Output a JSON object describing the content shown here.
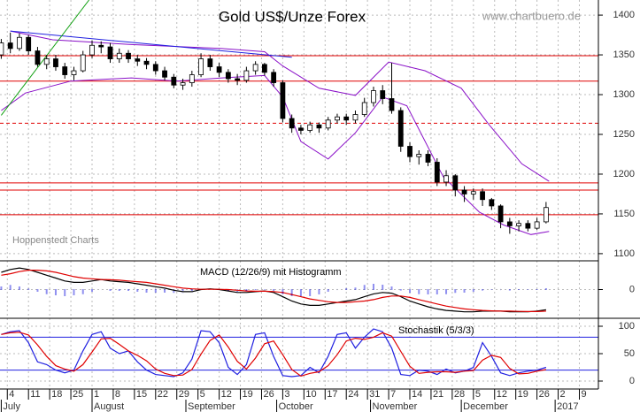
{
  "chart_data": [
    {
      "type": "candlestick",
      "title": "Gold US$/Unze Forex",
      "source": "www.chartbuero.de",
      "annotation": "Hoppenstedt Charts",
      "x": [
        1,
        4,
        7,
        10,
        13,
        16,
        19,
        22,
        25,
        28,
        31,
        34,
        37,
        40,
        43,
        46,
        49,
        52,
        55,
        58,
        61,
        64,
        67,
        70,
        73,
        76,
        79,
        82,
        85,
        88,
        91,
        94,
        97,
        100,
        103,
        106,
        109,
        112,
        115,
        118,
        121,
        124,
        127,
        130,
        133,
        136,
        139,
        142,
        145,
        148,
        151,
        154,
        157,
        160,
        163,
        166,
        169,
        172,
        175,
        178,
        181
      ],
      "open": [
        1350,
        1365,
        1358,
        1372,
        1355,
        1338,
        1345,
        1335,
        1325,
        1330,
        1350,
        1362,
        1360,
        1345,
        1352,
        1345,
        1342,
        1338,
        1330,
        1322,
        1312,
        1315,
        1325,
        1345,
        1335,
        1328,
        1320,
        1318,
        1330,
        1338,
        1328,
        1315,
        1270,
        1258,
        1255,
        1262,
        1258,
        1268,
        1272,
        1268,
        1275,
        1290,
        1305,
        1295,
        1280,
        1235,
        1222,
        1225,
        1215,
        1190,
        1198,
        1180,
        1175,
        1178,
        1168,
        1160,
        1140,
        1135,
        1138,
        1132,
        1140
      ],
      "high": [
        1370,
        1378,
        1377,
        1375,
        1360,
        1350,
        1350,
        1340,
        1335,
        1355,
        1368,
        1367,
        1365,
        1358,
        1356,
        1350,
        1346,
        1342,
        1335,
        1326,
        1320,
        1330,
        1352,
        1350,
        1340,
        1332,
        1326,
        1335,
        1342,
        1340,
        1332,
        1318,
        1275,
        1262,
        1266,
        1265,
        1272,
        1276,
        1276,
        1280,
        1296,
        1310,
        1312,
        1340,
        1284,
        1240,
        1230,
        1230,
        1220,
        1205,
        1200,
        1185,
        1182,
        1182,
        1170,
        1162,
        1145,
        1142,
        1142,
        1145,
        1165
      ],
      "low": [
        1345,
        1352,
        1355,
        1350,
        1335,
        1332,
        1330,
        1320,
        1318,
        1328,
        1346,
        1352,
        1340,
        1340,
        1340,
        1336,
        1332,
        1325,
        1318,
        1308,
        1306,
        1310,
        1322,
        1330,
        1322,
        1315,
        1312,
        1315,
        1325,
        1324,
        1310,
        1265,
        1252,
        1250,
        1252,
        1252,
        1255,
        1264,
        1262,
        1264,
        1272,
        1285,
        1288,
        1276,
        1228,
        1215,
        1212,
        1210,
        1185,
        1185,
        1172,
        1165,
        1168,
        1160,
        1155,
        1132,
        1125,
        1128,
        1128,
        1130,
        1138
      ],
      "close": [
        1365,
        1358,
        1372,
        1355,
        1338,
        1345,
        1335,
        1325,
        1330,
        1350,
        1362,
        1360,
        1345,
        1352,
        1345,
        1342,
        1338,
        1330,
        1322,
        1312,
        1315,
        1325,
        1345,
        1335,
        1328,
        1320,
        1318,
        1330,
        1338,
        1328,
        1315,
        1270,
        1258,
        1255,
        1262,
        1258,
        1268,
        1272,
        1268,
        1275,
        1290,
        1305,
        1295,
        1280,
        1235,
        1222,
        1225,
        1215,
        1190,
        1198,
        1180,
        1175,
        1178,
        1168,
        1160,
        1140,
        1135,
        1138,
        1132,
        1140,
        1158
      ],
      "xlim": [
        0,
        198
      ],
      "ylim": [
        1091,
        1419
      ],
      "yticks": [
        1100,
        1150,
        1200,
        1250,
        1300,
        1350,
        1400
      ],
      "grid": true,
      "bands": {
        "color": "#8a10c8",
        "upper": {
          "x": [
            4,
            18,
            44,
            74,
            88,
            94,
            106,
            118,
            129,
            141,
            153,
            162,
            173,
            182
          ],
          "values": [
            1380,
            1369,
            1363,
            1358,
            1354,
            1336,
            1308,
            1299,
            1341,
            1330,
            1308,
            1263,
            1213,
            1191
          ]
        },
        "lower": {
          "x": [
            1,
            9,
            24,
            44,
            59,
            74,
            88,
            94,
            100,
            109,
            118,
            127,
            135,
            147,
            159,
            167,
            176,
            182
          ],
          "values": [
            1280,
            1302,
            1317,
            1321,
            1317,
            1321,
            1324,
            1297,
            1241,
            1219,
            1252,
            1297,
            1286,
            1197,
            1152,
            1136,
            1124,
            1128
          ]
        }
      },
      "trendlines": [
        {
          "color": "#2020e0",
          "x": [
            4,
            97
          ],
          "values": [
            1380,
            1347
          ]
        },
        {
          "color": "#10a010",
          "x": [
            1,
            30
          ],
          "values": [
            1274,
            1419
          ]
        }
      ],
      "level_color": "#e00000",
      "levels": [
        {
          "value": 1349,
          "style": "solid"
        },
        {
          "value": 1317,
          "style": "solid"
        },
        {
          "value": 1264,
          "style": "dashed"
        },
        {
          "value": 1189,
          "style": "solid"
        },
        {
          "value": 1180,
          "style": "solid"
        },
        {
          "value": 1149,
          "style": "solid"
        }
      ]
    },
    {
      "type": "line",
      "title": "MACD (12/26/9) mit Histogramm",
      "x": [
        1,
        4,
        7,
        10,
        13,
        16,
        19,
        22,
        25,
        28,
        31,
        34,
        37,
        40,
        43,
        46,
        49,
        52,
        55,
        58,
        61,
        64,
        67,
        70,
        73,
        76,
        79,
        82,
        85,
        88,
        91,
        94,
        97,
        100,
        103,
        106,
        109,
        112,
        115,
        118,
        121,
        124,
        127,
        130,
        133,
        136,
        139,
        142,
        145,
        148,
        151,
        154,
        157,
        160,
        163,
        166,
        169,
        172,
        175,
        178,
        181
      ],
      "series": [
        {
          "color": "#000000",
          "values": [
            12,
            14,
            15,
            14,
            12,
            10,
            8,
            6,
            5,
            5,
            6,
            7,
            6,
            5.5,
            5,
            4,
            3,
            2,
            1,
            -0.5,
            -1.5,
            -1.5,
            0,
            0.5,
            0,
            -1,
            -2,
            -2,
            -1.5,
            -1,
            -2,
            -5,
            -8,
            -10,
            -11,
            -11,
            -10,
            -9,
            -8,
            -7,
            -5,
            -3,
            -2,
            -2.5,
            -5,
            -8,
            -10,
            -12,
            -13.5,
            -14.5,
            -15,
            -15.5,
            -15.5,
            -15,
            -15,
            -15,
            -15.5,
            -15.5,
            -15.5,
            -15,
            -14
          ]
        },
        {
          "color": "#e00000",
          "values": [
            10,
            11,
            12.5,
            13.5,
            13.5,
            13,
            12,
            10.5,
            9,
            8,
            7.5,
            7,
            6.8,
            6.5,
            6,
            5.5,
            5,
            4,
            3,
            2,
            1,
            0.5,
            0.2,
            0.2,
            0.2,
            0,
            -0.5,
            -1,
            -1.2,
            -1.2,
            -1.4,
            -2,
            -3.5,
            -5,
            -6.5,
            -7.5,
            -8.5,
            -9,
            -9,
            -8.5,
            -8,
            -7,
            -5.5,
            -4.5,
            -4.5,
            -5.5,
            -7,
            -8.5,
            -10,
            -11.5,
            -12.5,
            -13.5,
            -14,
            -14.5,
            -14.8,
            -15,
            -15,
            -15.2,
            -15.3,
            -15.3,
            -15
          ]
        }
      ],
      "histogram": {
        "color": "#2020e0",
        "values": [
          2,
          3,
          2.5,
          0.5,
          -1.5,
          -3,
          -4,
          -4.5,
          -4,
          -3,
          -1.5,
          0,
          -0.8,
          -1,
          -1,
          -1.5,
          -2,
          -2,
          -2,
          -2.5,
          -2.5,
          -2,
          -0.2,
          0.3,
          -0.2,
          -1,
          -1.5,
          -1,
          -0.3,
          0.2,
          -0.6,
          -3,
          -4.5,
          -5,
          -4.5,
          -3.5,
          -1.5,
          0,
          1,
          1.5,
          3,
          4,
          3.5,
          2,
          -0.5,
          -2.5,
          -3,
          -3.5,
          -3.5,
          -3,
          -2.5,
          -2,
          -1.5,
          -0.5,
          -0.2,
          0,
          -0.5,
          -0.3,
          -0.2,
          0.3,
          1
        ]
      },
      "xlim": [
        0,
        198
      ],
      "ylim": [
        -20,
        20
      ],
      "yticks": [
        0
      ],
      "grid": true
    },
    {
      "type": "line",
      "title": "Stochastik (5/3/3)",
      "x": [
        1,
        4,
        7,
        10,
        13,
        16,
        19,
        22,
        25,
        28,
        31,
        34,
        37,
        40,
        43,
        46,
        49,
        52,
        55,
        58,
        61,
        64,
        67,
        70,
        73,
        76,
        79,
        82,
        85,
        88,
        91,
        94,
        97,
        100,
        103,
        106,
        109,
        112,
        115,
        118,
        121,
        124,
        127,
        130,
        133,
        136,
        139,
        142,
        145,
        148,
        151,
        154,
        157,
        160,
        163,
        166,
        169,
        172,
        175,
        178,
        181
      ],
      "series": [
        {
          "color": "#2020e0",
          "values": [
            85,
            90,
            92,
            70,
            35,
            30,
            20,
            15,
            20,
            55,
            85,
            90,
            60,
            50,
            55,
            35,
            20,
            12,
            10,
            8,
            15,
            40,
            92,
            90,
            70,
            25,
            12,
            30,
            85,
            88,
            45,
            10,
            8,
            10,
            25,
            15,
            45,
            85,
            88,
            60,
            80,
            95,
            90,
            60,
            12,
            10,
            20,
            18,
            12,
            22,
            15,
            18,
            25,
            70,
            45,
            15,
            10,
            15,
            18,
            20,
            25
          ]
        },
        {
          "color": "#e00000",
          "values": [
            85,
            88,
            89,
            84,
            66,
            45,
            28,
            22,
            18,
            30,
            53,
            77,
            78,
            67,
            55,
            47,
            37,
            22,
            14,
            10,
            11,
            21,
            49,
            74,
            84,
            62,
            36,
            22,
            42,
            68,
            73,
            48,
            21,
            9,
            14,
            17,
            28,
            48,
            73,
            78,
            76,
            80,
            88,
            82,
            54,
            27,
            14,
            16,
            17,
            17,
            16,
            18,
            19,
            38,
            47,
            43,
            23,
            13,
            14,
            18,
            21
          ]
        }
      ],
      "level_color": "#2020e0",
      "levels": [
        80,
        20
      ],
      "xlim": [
        0,
        198
      ],
      "ylim": [
        -14.5,
        114.5
      ],
      "yticks": [
        0,
        50,
        100
      ],
      "grid": true,
      "xticks": [
        {
          "value": 3,
          "label": "4"
        },
        {
          "value": 10,
          "label": "11"
        },
        {
          "value": 17,
          "label": "18"
        },
        {
          "value": 24,
          "label": "25"
        },
        {
          "value": 31,
          "label": "1"
        },
        {
          "value": 38,
          "label": "8"
        },
        {
          "value": 45,
          "label": "15"
        },
        {
          "value": 52,
          "label": "22"
        },
        {
          "value": 59,
          "label": "29"
        },
        {
          "value": 66,
          "label": "5"
        },
        {
          "value": 73,
          "label": "12"
        },
        {
          "value": 80,
          "label": "19"
        },
        {
          "value": 87,
          "label": "26"
        },
        {
          "value": 94,
          "label": "3"
        },
        {
          "value": 101,
          "label": "10"
        },
        {
          "value": 108,
          "label": "17"
        },
        {
          "value": 115,
          "label": "24"
        },
        {
          "value": 122,
          "label": "31"
        },
        {
          "value": 129,
          "label": "7"
        },
        {
          "value": 136,
          "label": "14"
        },
        {
          "value": 143,
          "label": "21"
        },
        {
          "value": 150,
          "label": "28"
        },
        {
          "value": 157,
          "label": "5"
        },
        {
          "value": 164,
          "label": "12"
        },
        {
          "value": 171,
          "label": "19"
        },
        {
          "value": 178,
          "label": "26"
        },
        {
          "value": 185,
          "label": "2"
        },
        {
          "value": 192,
          "label": "9"
        }
      ],
      "months": [
        {
          "value": 1,
          "label": "July"
        },
        {
          "value": 31,
          "label": "August"
        },
        {
          "value": 62,
          "label": "September"
        },
        {
          "value": 92,
          "label": "October"
        },
        {
          "value": 123,
          "label": "November"
        },
        {
          "value": 153,
          "label": "December"
        },
        {
          "value": 184,
          "label": "2017"
        }
      ]
    }
  ]
}
